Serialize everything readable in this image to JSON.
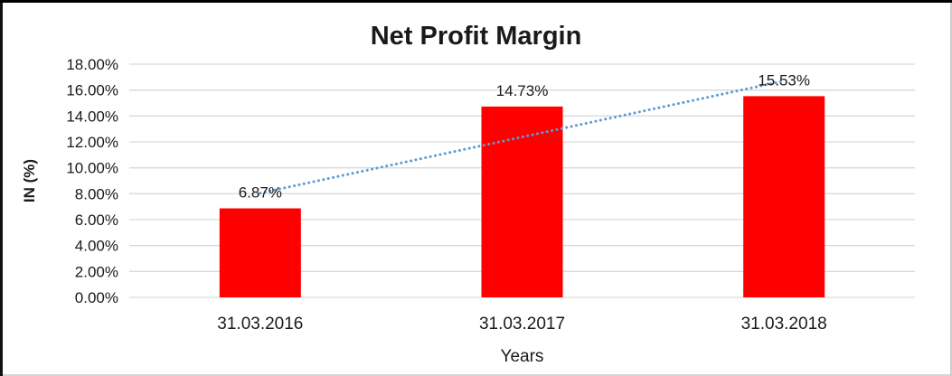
{
  "chart_data": {
    "type": "bar",
    "title": "Net Profit Margin",
    "xlabel": "Years",
    "ylabel": "IN (%)",
    "categories": [
      "31.03.2016",
      "31.03.2017",
      "31.03.2018"
    ],
    "values": [
      6.87,
      14.73,
      15.53
    ],
    "data_labels": [
      "6.87%",
      "14.73%",
      "15.53%"
    ],
    "y_ticks": [
      "0.00%",
      "2.00%",
      "4.00%",
      "6.00%",
      "8.00%",
      "10.00%",
      "12.00%",
      "14.00%",
      "16.00%",
      "18.00%"
    ],
    "y_tick_step": 2,
    "ylim": [
      0,
      18
    ],
    "grid": true,
    "legend": "none",
    "bar_color": "#FF0000",
    "gridline_color": "#D9D9D9",
    "text_color": "#1a1a1a",
    "trendline": {
      "type": "linear",
      "style": "dotted",
      "color": "#5B9BD5"
    }
  }
}
